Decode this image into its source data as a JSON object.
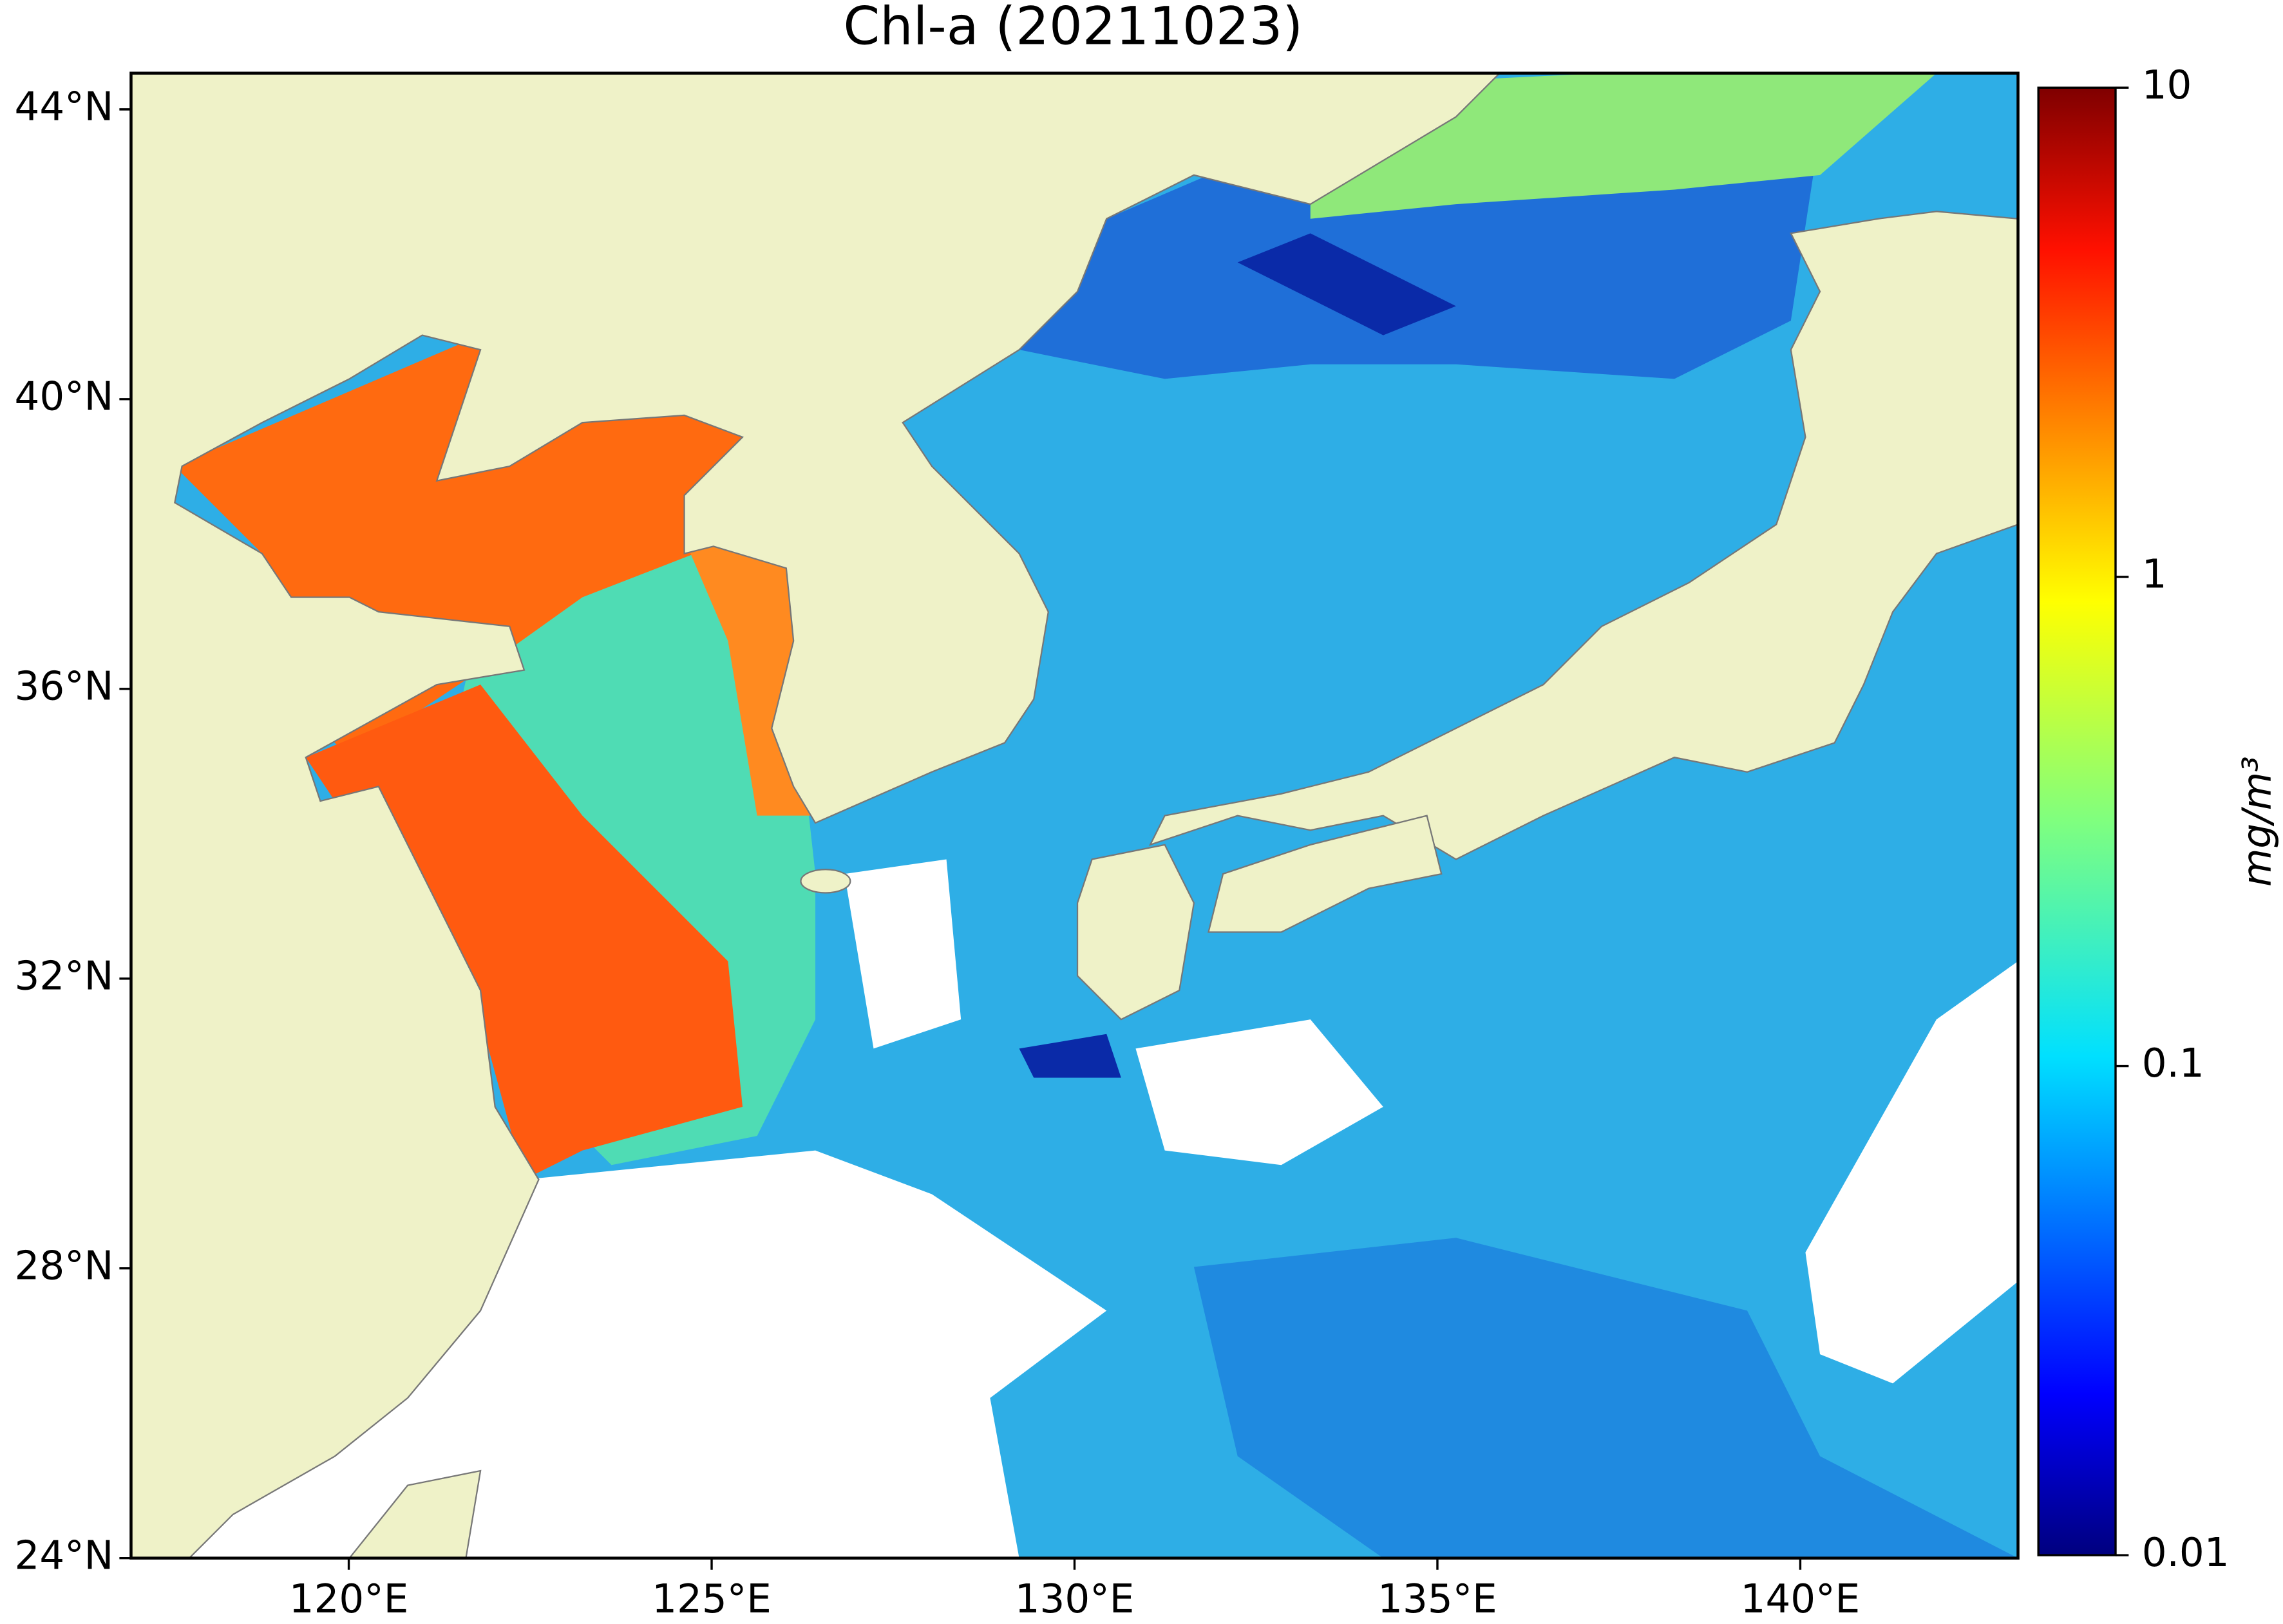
{
  "title": "Chl-a (20211023)",
  "map": {
    "xlim": [
      117,
      143
    ],
    "ylim": [
      24,
      44.5
    ],
    "xticks": [
      {
        "value": 120,
        "label": "120°E"
      },
      {
        "value": 125,
        "label": "125°E"
      },
      {
        "value": 130,
        "label": "130°E"
      },
      {
        "value": 135,
        "label": "135°E"
      },
      {
        "value": 140,
        "label": "140°E"
      }
    ],
    "yticks": [
      {
        "value": 24,
        "label": "24°N"
      },
      {
        "value": 28,
        "label": "28°N"
      },
      {
        "value": 32,
        "label": "32°N"
      },
      {
        "value": 36,
        "label": "36°N"
      },
      {
        "value": 40,
        "label": "40°N"
      },
      {
        "value": 44,
        "label": "44°N"
      }
    ]
  },
  "colorbar": {
    "label": "mg/m³",
    "scale": "log",
    "lim": [
      0.01,
      10
    ],
    "ticks": [
      0.01,
      0.1,
      1,
      10
    ]
  }
}
